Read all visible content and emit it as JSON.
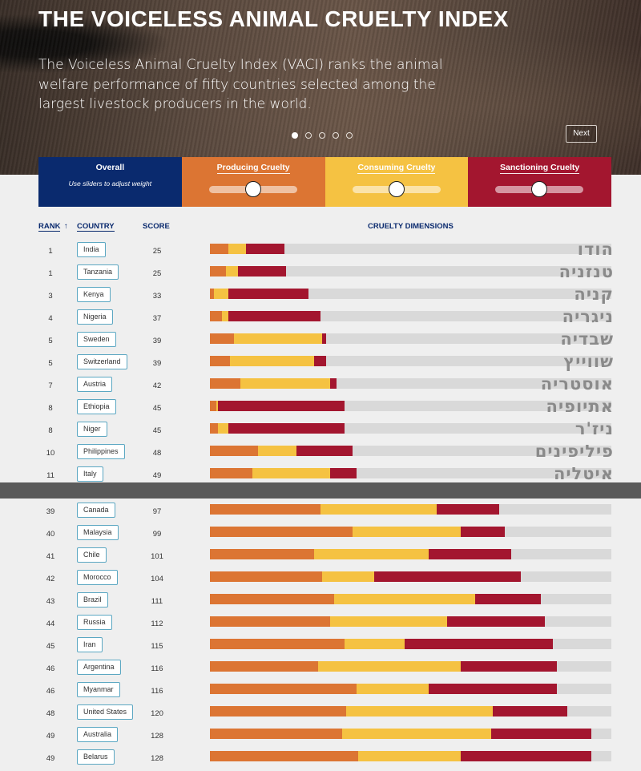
{
  "hero": {
    "title": "THE VOICELESS ANIMAL CRUELTY INDEX",
    "description": "The Voiceless Animal Cruelty Index (VACI) ranks the animal welfare performance of fifty countries selected among the largest livestock producers in the world.",
    "next_label": "Next",
    "slide_count": 5,
    "active_slide": 1
  },
  "controls": {
    "overall_title": "Overall",
    "overall_sub": "Use sliders to adjust weight",
    "producing_title": "Producing Cruelty",
    "consuming_title": "Consuming Cruelty",
    "sanctioning_title": "Sanctioning Cruelty",
    "producing_level": 0.5,
    "consuming_level": 0.5,
    "sanctioning_level": 0.5
  },
  "table": {
    "rank_header": "RANK",
    "sort_icon": "arrow-up-icon",
    "country_header": "COUNTRY",
    "score_header": "SCORE",
    "dims_header": "CRUELTY DIMENSIONS"
  },
  "colors": {
    "producing": "#dc7533",
    "consuming": "#f5c242",
    "sanctioning": "#a3162f",
    "overall": "#0a2a6e"
  },
  "chart_data": {
    "type": "bar",
    "stacked": true,
    "orientation": "horizontal",
    "series_names": [
      "Producing Cruelty",
      "Consuming Cruelty",
      "Sanctioning Cruelty"
    ],
    "top_rows": [
      {
        "rank": "1",
        "country": "India",
        "score": "25",
        "hebrew": "הודו",
        "p": 4.5,
        "c": 4.5,
        "s": 9.5
      },
      {
        "rank": "1",
        "country": "Tanzania",
        "score": "25",
        "hebrew": "טנזניה",
        "p": 4,
        "c": 3,
        "s": 12
      },
      {
        "rank": "3",
        "country": "Kenya",
        "score": "33",
        "hebrew": "קניה",
        "p": 1,
        "c": 3.5,
        "s": 20
      },
      {
        "rank": "4",
        "country": "Nigeria",
        "score": "37",
        "hebrew": "ניגריה",
        "p": 3,
        "c": 1.5,
        "s": 23
      },
      {
        "rank": "5",
        "country": "Sweden",
        "score": "39",
        "hebrew": "שבדיה",
        "p": 6,
        "c": 22,
        "s": 1
      },
      {
        "rank": "5",
        "country": "Switzerland",
        "score": "39",
        "hebrew": "שווייץ",
        "p": 5,
        "c": 21,
        "s": 3
      },
      {
        "rank": "7",
        "country": "Austria",
        "score": "42",
        "hebrew": "אוסטריה",
        "p": 7.5,
        "c": 22.5,
        "s": 1.5
      },
      {
        "rank": "8",
        "country": "Ethiopia",
        "score": "45",
        "hebrew": "אתיופיה",
        "p": 1.5,
        "c": 0.5,
        "s": 31.5
      },
      {
        "rank": "8",
        "country": "Niger",
        "score": "45",
        "hebrew": "ניז'ר",
        "p": 2,
        "c": 2.5,
        "s": 29
      },
      {
        "rank": "10",
        "country": "Philippines",
        "score": "48",
        "hebrew": "פיליפינים",
        "p": 12,
        "c": 9.5,
        "s": 14
      },
      {
        "rank": "11",
        "country": "Italy",
        "score": "49",
        "hebrew": "איטליה",
        "p": 10.5,
        "c": 19.5,
        "s": 6.5
      }
    ],
    "bottom_rows": [
      {
        "rank": "39",
        "country": "Canada",
        "score": "97",
        "p": 27.5,
        "c": 29,
        "s": 15.5
      },
      {
        "rank": "40",
        "country": "Malaysia",
        "score": "99",
        "p": 35.5,
        "c": 27,
        "s": 11
      },
      {
        "rank": "41",
        "country": "Chile",
        "score": "101",
        "p": 26,
        "c": 28.5,
        "s": 20.5
      },
      {
        "rank": "42",
        "country": "Morocco",
        "score": "104",
        "p": 28,
        "c": 13,
        "s": 36.5
      },
      {
        "rank": "43",
        "country": "Brazil",
        "score": "111",
        "p": 31,
        "c": 35,
        "s": 16.5
      },
      {
        "rank": "44",
        "country": "Russia",
        "score": "112",
        "p": 30,
        "c": 29,
        "s": 24.5
      },
      {
        "rank": "45",
        "country": "Iran",
        "score": "115",
        "p": 33.5,
        "c": 15,
        "s": 37
      },
      {
        "rank": "46",
        "country": "Argentina",
        "score": "116",
        "p": 27,
        "c": 35.5,
        "s": 24
      },
      {
        "rank": "46",
        "country": "Myanmar",
        "score": "116",
        "p": 36.5,
        "c": 18,
        "s": 32
      },
      {
        "rank": "48",
        "country": "United States",
        "score": "120",
        "p": 34,
        "c": 36.5,
        "s": 18.5
      },
      {
        "rank": "49",
        "country": "Australia",
        "score": "128",
        "p": 33,
        "c": 37,
        "s": 25
      },
      {
        "rank": "49",
        "country": "Belarus",
        "score": "128",
        "p": 37,
        "c": 25.5,
        "s": 32.5
      }
    ],
    "xlim": [
      0,
      100
    ]
  }
}
